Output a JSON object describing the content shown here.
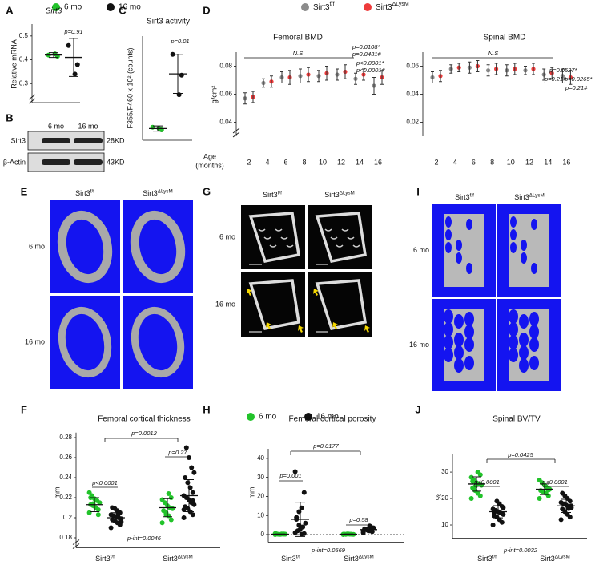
{
  "legends": {
    "age_top": [
      {
        "label": "6 mo",
        "color": "#22c32a"
      },
      {
        "label": "16 mo",
        "color": "#111111"
      }
    ],
    "genotype": [
      {
        "label": {
          "base": "Sirt3",
          "sup": "f/f"
        },
        "color": "#8c8c8c"
      },
      {
        "label": {
          "base": "Sirt3",
          "sup": "ΔLysM"
        },
        "color": "#ee3b3b"
      }
    ],
    "age_middle": [
      {
        "label": "6 mo",
        "color": "#22c32a"
      },
      {
        "label": "16 mo",
        "color": "#111111"
      }
    ]
  },
  "blot": {
    "letter": "B",
    "columns": [
      "6 mo",
      "16 mo"
    ],
    "rows": [
      {
        "name": "Sirt3",
        "size": "28KD"
      },
      {
        "name": "β-Actin",
        "size": "43KD"
      }
    ]
  },
  "images": [
    {
      "letter": "E",
      "columns": [
        {
          "base": "Sirt3",
          "sup": "f/f"
        },
        {
          "base": "Sirt3",
          "sup": "ΔLysM"
        }
      ],
      "rows": [
        "6 mo",
        "16 mo"
      ]
    },
    {
      "letter": "G",
      "columns": [
        {
          "base": "Sirt3",
          "sup": "f/f"
        },
        {
          "base": "Sirt3",
          "sup": "ΔLysM"
        }
      ],
      "rows": [
        "6 mo",
        "16 mo"
      ]
    },
    {
      "letter": "I",
      "columns": [
        {
          "base": "Sirt3",
          "sup": "f/f"
        },
        {
          "base": "Sirt3",
          "sup": "ΔLysM"
        }
      ],
      "rows": [
        "6 mo",
        "16 mo"
      ]
    }
  ],
  "chart_data": [
    {
      "type": "dotplot",
      "letter": "A",
      "title": "Sirt3",
      "y_label": "Relative mRNA",
      "ylim": [
        0.22,
        0.55
      ],
      "yticks": [
        0.3,
        0.4,
        0.5
      ],
      "categories": [
        null
      ],
      "series": [
        {
          "color": "#22c32a",
          "values": [
            [
              0.42,
              0.415,
              0.425
            ]
          ],
          "mean": [
            0.42
          ],
          "sd": [
            0.01
          ]
        },
        {
          "color": "#111111",
          "values": [
            [
              0.46,
              0.38,
              0.34
            ]
          ],
          "mean": [
            0.41
          ],
          "sd": [
            0.08
          ]
        }
      ],
      "annotations": [
        "p=0.91"
      ]
    },
    {
      "type": "dotplot",
      "letter": "C",
      "title": "Sirt3 activity",
      "y_label": "F355/F460 x 10² (counts)",
      "ylim": [
        0,
        0.8
      ],
      "yticks": [],
      "categories": [
        null
      ],
      "series": [
        {
          "color": "#22c32a",
          "values": [
            [
              0.1,
              0.08,
              0.09
            ]
          ],
          "mean": [
            0.09
          ],
          "sd": [
            0.02
          ]
        },
        {
          "color": "#111111",
          "values": [
            [
              0.66,
              0.5,
              0.35
            ]
          ],
          "mean": [
            0.51
          ],
          "sd": [
            0.15
          ]
        }
      ],
      "annotations": [
        "p=0.01"
      ]
    },
    {
      "type": "errorbar",
      "letter": "D",
      "title": "Femoral BMD",
      "y_label": "g/cm²",
      "x_label": [
        "Age",
        "(months)"
      ],
      "ylim": [
        0.03,
        0.09
      ],
      "yticks": [
        0.04,
        0.06,
        0.08
      ],
      "categories": [
        2,
        4,
        6,
        8,
        10,
        12,
        14,
        16
      ],
      "series": [
        {
          "color": "#8c8c8c",
          "mean": [
            0.057,
            0.068,
            0.072,
            0.073,
            0.073,
            0.074,
            0.071,
            0.066
          ],
          "sd": [
            0.004,
            0.003,
            0.004,
            0.005,
            0.004,
            0.004,
            0.004,
            0.006
          ]
        },
        {
          "color": "#ee3b3b",
          "mean": [
            0.058,
            0.069,
            0.072,
            0.074,
            0.075,
            0.076,
            0.074,
            0.072
          ],
          "sd": [
            0.004,
            0.004,
            0.005,
            0.005,
            0.005,
            0.005,
            0.004,
            0.005
          ]
        }
      ],
      "annotations": [
        "N.S",
        "p=0.0108*",
        "p=0.0431#",
        "p<0.0001*",
        "p<0.0001#"
      ]
    },
    {
      "type": "errorbar",
      "title": "Spinal BMD",
      "ylim": [
        0.01,
        0.07
      ],
      "yticks": [
        0.02,
        0.04,
        0.06
      ],
      "categories": [
        2,
        4,
        6,
        8,
        10,
        12,
        14,
        16
      ],
      "series": [
        {
          "color": "#8c8c8c",
          "mean": [
            0.052,
            0.058,
            0.059,
            0.057,
            0.057,
            0.057,
            0.054,
            0.053
          ],
          "sd": [
            0.004,
            0.003,
            0.004,
            0.004,
            0.004,
            0.003,
            0.004,
            0.005
          ]
        },
        {
          "color": "#ee3b3b",
          "mean": [
            0.053,
            0.059,
            0.06,
            0.058,
            0.058,
            0.058,
            0.055,
            0.052
          ],
          "sd": [
            0.004,
            0.003,
            0.004,
            0.004,
            0.004,
            0.004,
            0.004,
            0.005
          ]
        }
      ],
      "annotations": [
        "N.S",
        "p=0.0527*",
        "p=0.21#",
        "p=0.0265*",
        "p=0.21#"
      ]
    },
    {
      "type": "dotplot",
      "letter": "F",
      "title": "Femoral cortical thickness",
      "y_label": "mm",
      "ylim": [
        0.17,
        0.285
      ],
      "yticks": [
        0.18,
        0.2,
        0.22,
        0.24,
        0.26,
        0.28
      ],
      "categories": [
        {
          "base": "Sirt3",
          "sup": "f/f"
        },
        {
          "base": "Sirt3",
          "sup": "ΔLysM"
        }
      ],
      "series": [
        {
          "color": "#22c32a",
          "values": [
            [
              0.205,
              0.208,
              0.21,
              0.212,
              0.213,
              0.215,
              0.217,
              0.219,
              0.222,
              0.225,
              0.203,
              0.21,
              0.214,
              0.22
            ],
            [
              0.195,
              0.198,
              0.202,
              0.205,
              0.207,
              0.209,
              0.21,
              0.212,
              0.215,
              0.218,
              0.22,
              0.224,
              0.203
            ]
          ],
          "mean": [
            0.213,
            0.21
          ],
          "sd": [
            0.007,
            0.009
          ]
        },
        {
          "color": "#111111",
          "values": [
            [
              0.19,
              0.193,
              0.195,
              0.197,
              0.198,
              0.199,
              0.2,
              0.201,
              0.202,
              0.203,
              0.205,
              0.207,
              0.209,
              0.21,
              0.196,
              0.204
            ],
            [
              0.2,
              0.203,
              0.206,
              0.209,
              0.211,
              0.213,
              0.215,
              0.218,
              0.22,
              0.222,
              0.225,
              0.23,
              0.235,
              0.24,
              0.245,
              0.25,
              0.26,
              0.27,
              0.208,
              0.217
            ]
          ],
          "mean": [
            0.2,
            0.222
          ],
          "sd": [
            0.005,
            0.016
          ]
        }
      ],
      "annotations": [
        "p<0.0001",
        "p=0.27",
        "p=0.0012",
        "p-int=0.0046"
      ]
    },
    {
      "type": "dotplot",
      "letter": "H",
      "title": "Femoral cortical porosity",
      "y_label": "mm",
      "ylim": [
        -4,
        45
      ],
      "yticks": [
        0,
        10,
        20,
        30,
        40
      ],
      "zero_line": true,
      "categories": [
        {
          "base": "Sirt3",
          "sup": "f/f"
        },
        {
          "base": "Sirt3",
          "sup": "ΔLysM"
        }
      ],
      "series": [
        {
          "color": "#22c32a",
          "values": [
            [
              0,
              0.2,
              0.3,
              0.1,
              0.4,
              0.2,
              0.3,
              0.1,
              0.2,
              0.5,
              0.3,
              0.2
            ],
            [
              0,
              0.1,
              0.2,
              0.3,
              0.2,
              0.1,
              0.2,
              0.3,
              0.1,
              0.2
            ]
          ],
          "mean": [
            0.2,
            0.2
          ],
          "sd": [
            0.1,
            0.1
          ]
        },
        {
          "color": "#111111",
          "values": [
            [
              33,
              22,
              14,
              12,
              9,
              6,
              4,
              3,
              2,
              1,
              0.5,
              0.2,
              5,
              8
            ],
            [
              1,
              1.5,
              2,
              2.5,
              3,
              3.5,
              4,
              2,
              2.8,
              1.8,
              3.2,
              4.5,
              2.4
            ]
          ],
          "mean": [
            8,
            2.6
          ],
          "sd": [
            9,
            1
          ]
        }
      ],
      "annotations": [
        "p=0.001",
        "p=0.58",
        "p=0.0177",
        "p-int=0.0569"
      ]
    },
    {
      "type": "dotplot",
      "letter": "J",
      "title": "Spinal BV/TV",
      "y_label": "%",
      "ylim": [
        5,
        37
      ],
      "yticks": [
        10,
        20,
        30
      ],
      "categories": [
        {
          "base": "Sirt3",
          "sup": "f/f"
        },
        {
          "base": "Sirt3",
          "sup": "ΔLysM"
        }
      ],
      "series": [
        {
          "color": "#22c32a",
          "values": [
            [
              20,
              21,
              22,
              23,
              24,
              25,
              25.5,
              26,
              27,
              28,
              29,
              30,
              24.5,
              26.5
            ],
            [
              20,
              21,
              22,
              22.5,
              23,
              23.5,
              24,
              25,
              26,
              27,
              23.2,
              24.5
            ]
          ],
          "mean": [
            25.5,
            23.5
          ],
          "sd": [
            2.7,
            2
          ]
        },
        {
          "color": "#111111",
          "values": [
            [
              10,
              11,
              12,
              13,
              13.5,
              14,
              14.5,
              15,
              15.5,
              16,
              17,
              18,
              19,
              14.8,
              16.5
            ],
            [
              12,
              13,
              14,
              15,
              16,
              16.5,
              17,
              17.5,
              18,
              18.5,
              19,
              20,
              21,
              22,
              17.2,
              16.2
            ]
          ],
          "mean": [
            15,
            17.2
          ],
          "sd": [
            2.3,
            2.5
          ]
        }
      ],
      "annotations": [
        "p<0.0001",
        "p<0.0001",
        "p=0.0425",
        "p-int=0.0032"
      ]
    }
  ]
}
